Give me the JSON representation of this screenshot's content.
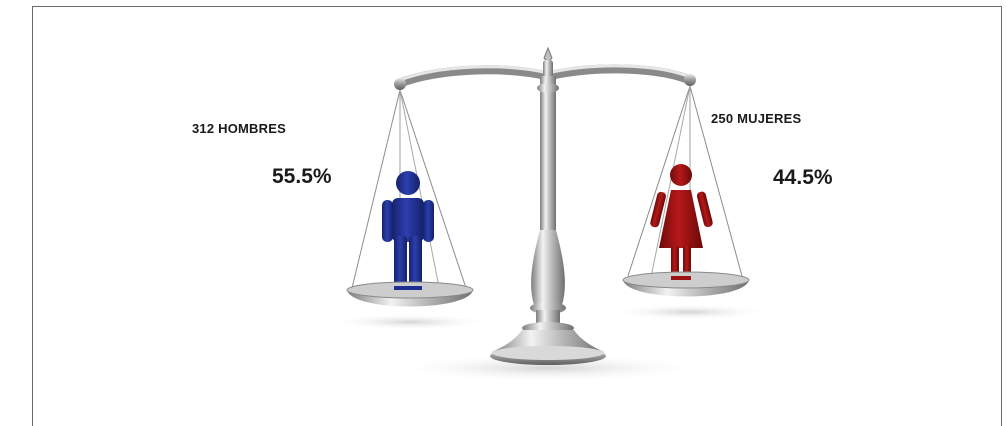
{
  "men": {
    "count_label": "312 HOMBRES",
    "percent_label": "55.5%",
    "color": "#1f2f8f"
  },
  "women": {
    "count_label": "250 MUJERES",
    "percent_label": "44.5%",
    "color": "#9a1212"
  },
  "icons": {
    "men": "male-person-icon",
    "women": "female-person-icon",
    "scale": "balance-scale-icon"
  }
}
